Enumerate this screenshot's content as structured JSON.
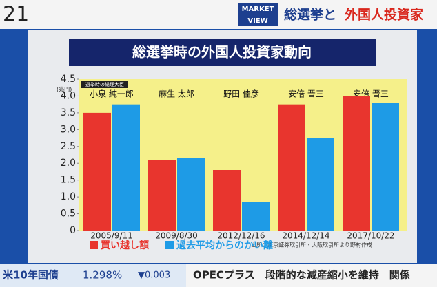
{
  "screen": {
    "clock": "21",
    "logo_top": "MARKET",
    "logo_bottom": "VIEW",
    "headline_1": "総選挙と",
    "headline_2": "外国人投資家",
    "ticker_label": "米10年国債",
    "ticker_value": "1.298%",
    "ticker_change": "▼0.003",
    "news": "OPECプラス　段階的な減産縮小を維持　関係"
  },
  "chart_data": {
    "type": "bar",
    "title": "総選挙時の外国人投資家動向",
    "y_unit": "(兆円)",
    "leaders_caption": "選挙時の総理大臣",
    "leaders": [
      "小泉 純一郎",
      "麻生 太郎",
      "野田 佳彦",
      "安倍 晋三",
      "安倍 晋三"
    ],
    "categories": [
      "2005/9/11",
      "2009/8/30",
      "2012/12/16",
      "2014/12/14",
      "2017/10/22"
    ],
    "series": [
      {
        "name": "買い越し額",
        "color": "#e8352e",
        "values": [
          3.5,
          2.1,
          1.8,
          3.75,
          4.0
        ]
      },
      {
        "name": "過去平均からのかい離",
        "color": "#1e9be6",
        "values": [
          3.75,
          2.15,
          0.85,
          2.75,
          3.8
        ]
      }
    ],
    "ylim": [
      0,
      4.5
    ],
    "yticks": [
      0,
      0.5,
      {
        "value": 1,
        "label": "1.0"
      },
      1.5,
      {
        "value": 2,
        "label": "2.0"
      },
      2.5,
      {
        "value": 3,
        "label": "3.0"
      },
      3.5,
      {
        "value": 4,
        "label": "4.0"
      },
      4.5
    ],
    "source": "出所：東京証券取引所・大阪取引所より野村作成"
  }
}
